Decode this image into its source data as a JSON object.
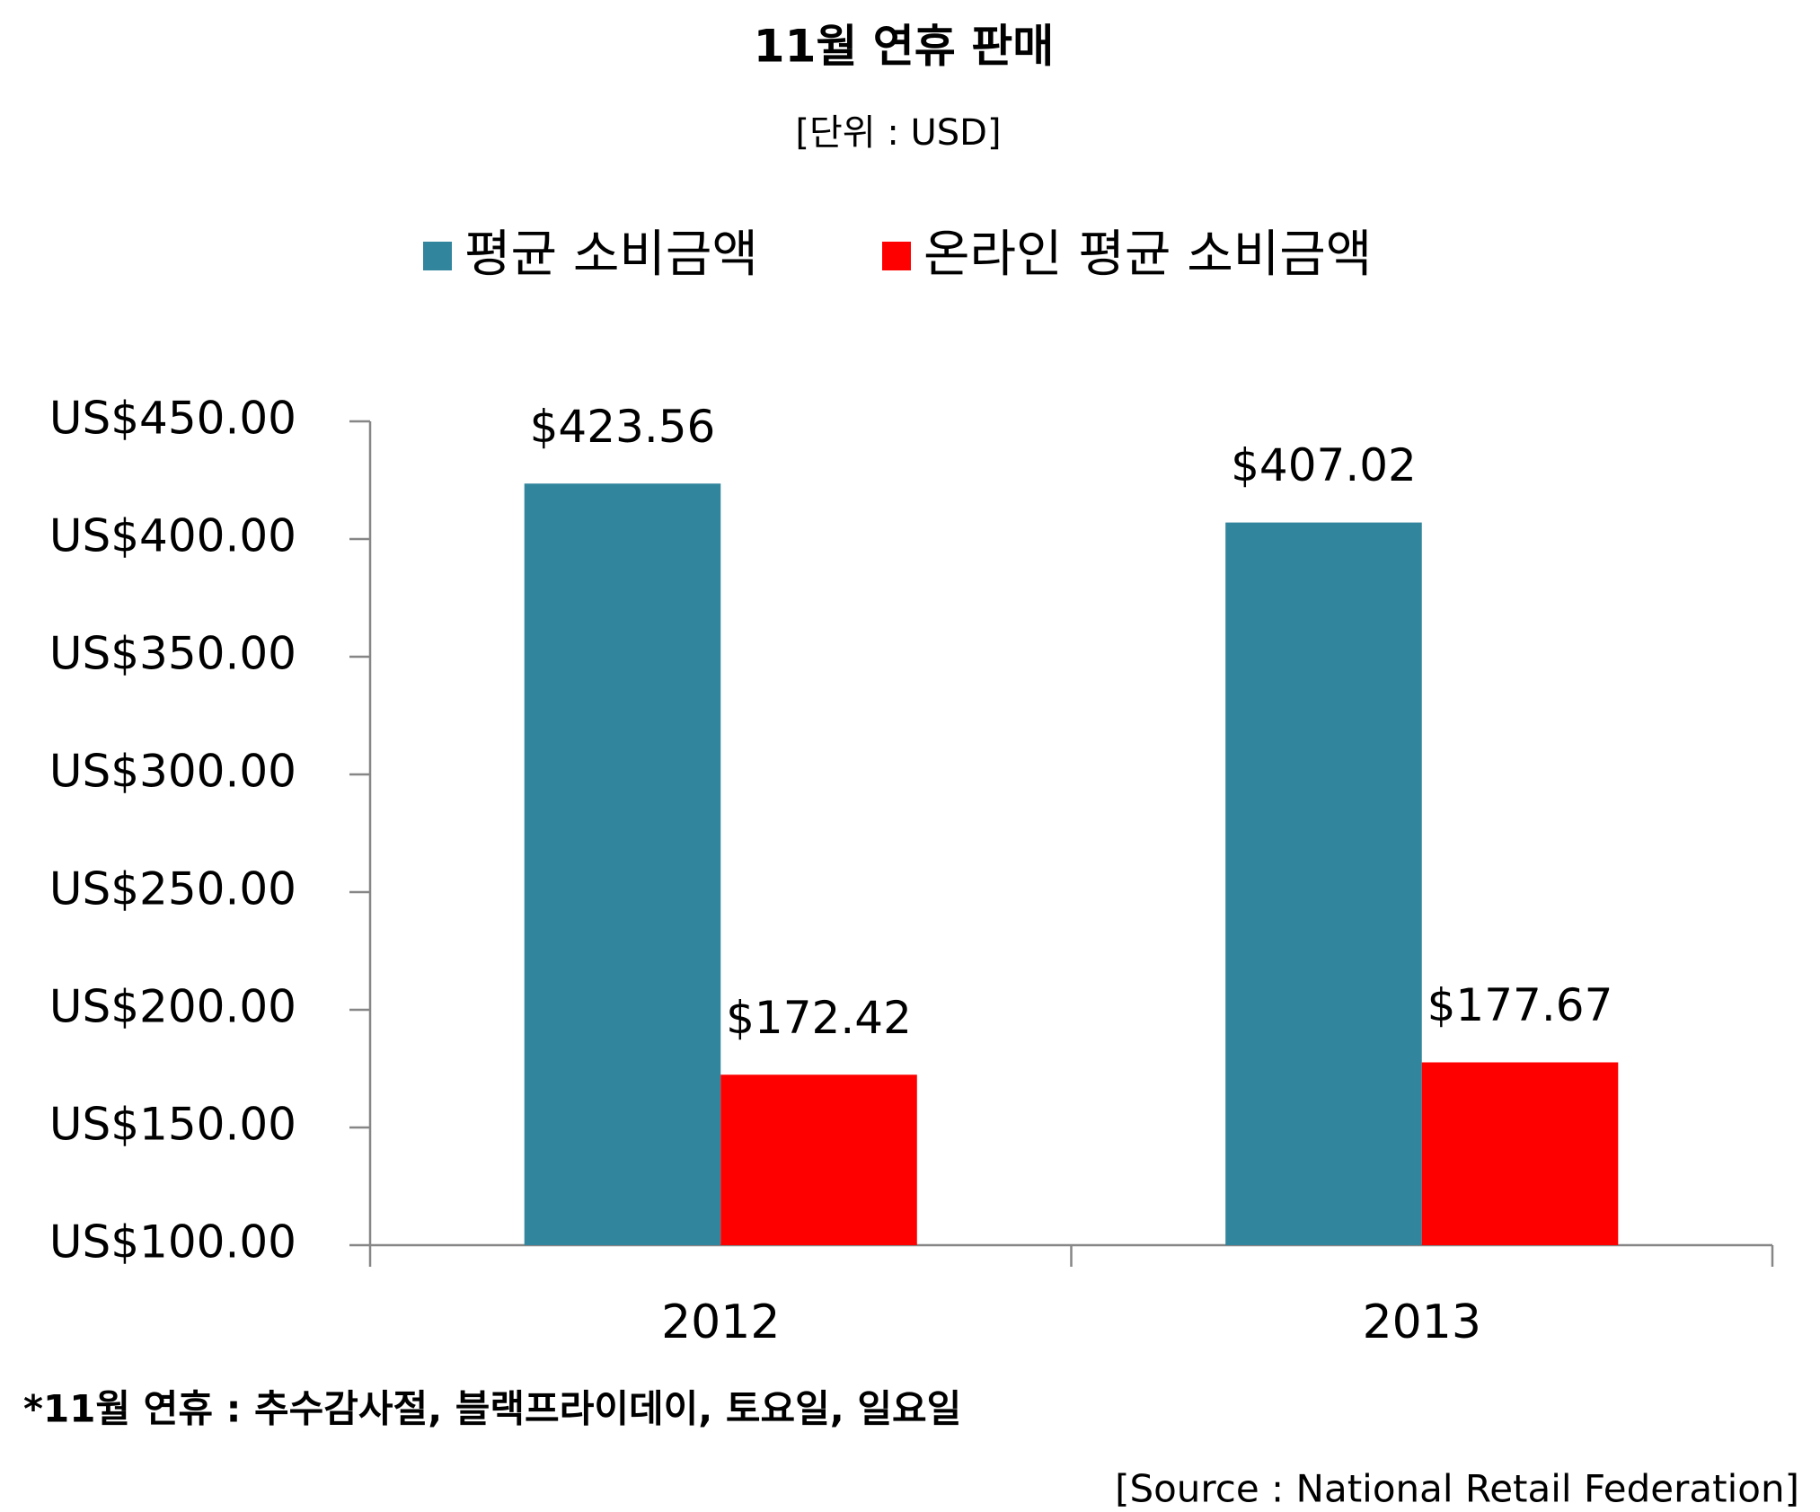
{
  "chart_data": {
    "type": "bar",
    "title": "11월 연휴 판매",
    "subtitle": "[단위 : USD]",
    "categories": [
      "2012",
      "2013"
    ],
    "series": [
      {
        "name": "평균 소비금액",
        "color": "#31859c",
        "values": [
          423.56,
          407.02
        ],
        "value_labels": [
          "$423.56",
          "$407.02"
        ]
      },
      {
        "name": "온라인 평균 소비금액",
        "color": "#ff0000",
        "values": [
          172.42,
          177.67
        ],
        "value_labels": [
          "$172.42",
          "$177.67"
        ]
      }
    ],
    "ylim": [
      100,
      450
    ],
    "yticks": [
      {
        "value": 100,
        "label": "US$100.00"
      },
      {
        "value": 150,
        "label": "US$150.00"
      },
      {
        "value": 200,
        "label": "US$200.00"
      },
      {
        "value": 250,
        "label": "US$250.00"
      },
      {
        "value": 300,
        "label": "US$300.00"
      },
      {
        "value": 350,
        "label": "US$350.00"
      },
      {
        "value": 400,
        "label": "US$400.00"
      },
      {
        "value": 450,
        "label": "US$450.00"
      }
    ],
    "grid": false,
    "legend": "top",
    "footnote": "*11월 연휴 : 추수감사절, 블랙프라이데이, 토요일, 일요일",
    "source": "[Source : National Retail Federation]"
  }
}
